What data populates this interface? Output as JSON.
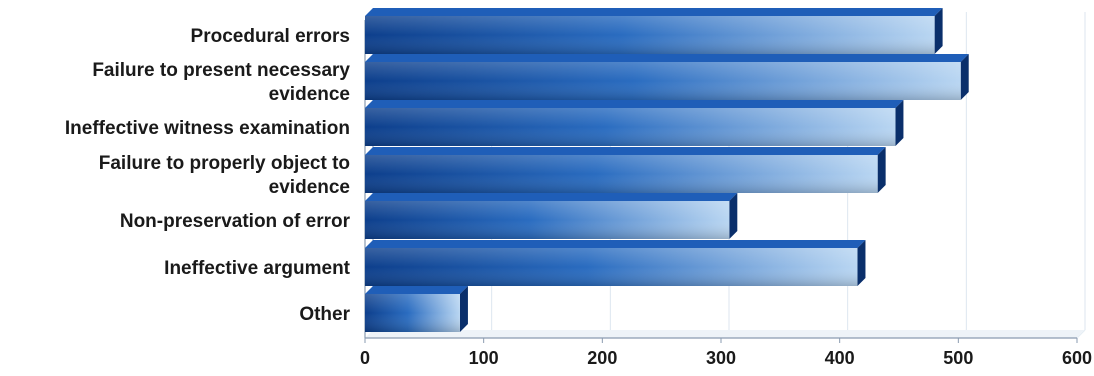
{
  "chart_data": {
    "type": "bar",
    "orientation": "horizontal",
    "style": "3d",
    "categories": [
      "Procedural errors",
      "Failure to present necessary evidence",
      "Ineffective witness examination",
      "Failure to properly object to evidence",
      "Non-preservation of error",
      "Ineffective argument",
      "Other"
    ],
    "category_lines": [
      [
        "Procedural errors"
      ],
      [
        "Failure to present necessary",
        "evidence"
      ],
      [
        "Ineffective witness examination"
      ],
      [
        "Failure to properly object to",
        "evidence"
      ],
      [
        "Non-preservation of error"
      ],
      [
        "Ineffective argument"
      ],
      [
        "Other"
      ]
    ],
    "values": [
      480,
      502,
      447,
      432,
      307,
      415,
      80
    ],
    "xlim": [
      0,
      600
    ],
    "xticks": [
      0,
      100,
      200,
      300,
      400,
      500,
      600
    ],
    "title": "",
    "xlabel": "",
    "ylabel": "",
    "grid": "vertical",
    "legend": "none",
    "colors": {
      "bar_dark": "#0d3f8c",
      "bar_mid": "#2a6cc0",
      "bar_light": "#b9d6f2",
      "bar_top": "#1f5eb8",
      "bar_side": "#0a2f6b",
      "grid": "#dde6ef",
      "axis": "#8a9bb0",
      "floor": "#eef3f8"
    }
  }
}
